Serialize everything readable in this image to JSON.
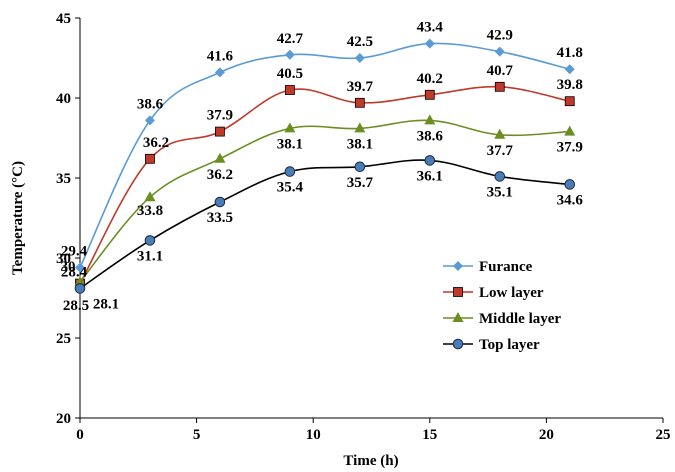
{
  "chart_data": {
    "type": "line",
    "title": "",
    "xlabel": "Time (h)",
    "ylabel": "Temperature (°C)",
    "xlim": [
      0,
      25
    ],
    "ylim": [
      20,
      45
    ],
    "x_ticks": [
      "0",
      "5",
      "10",
      "15",
      "20",
      "25"
    ],
    "y_ticks": [
      "20",
      "25",
      "30",
      "35",
      "40",
      "45"
    ],
    "grid": false,
    "legend_position": "right",
    "x": [
      0,
      3,
      6,
      9,
      12,
      15,
      18,
      21
    ],
    "series": [
      {
        "name": "Furance",
        "color": "#5B9BD5",
        "marker": "diamond",
        "values": [
          29.4,
          38.6,
          41.6,
          42.7,
          42.5,
          43.4,
          42.9,
          41.8
        ],
        "labels": [
          "29.4",
          "38.6",
          "41.6",
          "42.7",
          "42.5",
          "43.4",
          "42.9",
          "41.8"
        ]
      },
      {
        "name": "Low layer",
        "color": "#C0392B",
        "marker": "square",
        "values": [
          28.4,
          36.2,
          37.9,
          40.5,
          39.7,
          40.2,
          40.7,
          39.8
        ],
        "labels": [
          "28.4",
          "36.2",
          "37.9",
          "40.5",
          "39.7",
          "40.2",
          "40.7",
          "39.8"
        ]
      },
      {
        "name": "Middle layer",
        "color": "#6B8E23",
        "marker": "triangle",
        "values": [
          28.5,
          33.8,
          36.2,
          38.1,
          38.1,
          38.6,
          37.7,
          37.9
        ],
        "labels": [
          "28.5",
          "33.8",
          "36.2",
          "38.1",
          "38.1",
          "38.6",
          "37.7",
          "37.9"
        ]
      },
      {
        "name": "Top layer",
        "color": "#1F2A44",
        "marker": "circle",
        "values": [
          28.1,
          31.1,
          33.5,
          35.4,
          35.7,
          36.1,
          35.1,
          34.6
        ],
        "labels": [
          "28.1",
          "31.1",
          "33.5",
          "35.4",
          "35.7",
          "36.1",
          "35.1",
          "34.6"
        ]
      }
    ],
    "extra_labels": [
      "30"
    ]
  }
}
